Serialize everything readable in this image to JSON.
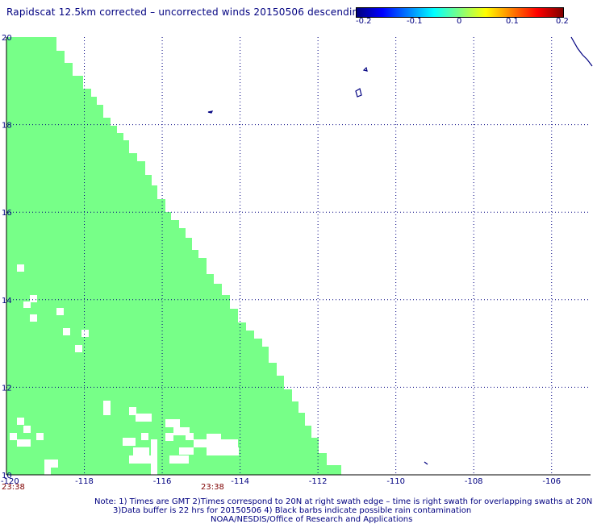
{
  "title": "Rapidscat 12.5km corrected – uncorrected winds 20150506 descending",
  "colorbar": {
    "labels": [
      "-0.2",
      "-0.1",
      "0",
      "0.1",
      "0.2"
    ],
    "colors": [
      "#00007f",
      "#0000ff",
      "#007fff",
      "#00ffff",
      "#7fff7f",
      "#ffff00",
      "#ff7f00",
      "#ff0000",
      "#7f0000"
    ]
  },
  "map": {
    "lon_range": [
      -120,
      -105
    ],
    "lat_range": [
      10,
      20
    ],
    "x_ticks": [
      "-120",
      "-118",
      "-116",
      "-114",
      "-112",
      "-110",
      "-108",
      "-106"
    ],
    "y_ticks": [
      "20",
      "18",
      "16",
      "14",
      "12",
      "10"
    ],
    "swath_color": "#77ff88",
    "coast_color": "#000080",
    "gridlines": "dotted"
  },
  "times": [
    "23:38",
    "23:38"
  ],
  "notes": [
    "Note: 1) Times are GMT 2)Times correspond to 20N at right swath edge – time is right swath for overlapping swaths at 20N",
    "3)Data buffer is 22 hrs for 20150506 4) Black barbs indicate possible rain contamination",
    "NOAA/NESDIS/Office of Research and Applications"
  ]
}
